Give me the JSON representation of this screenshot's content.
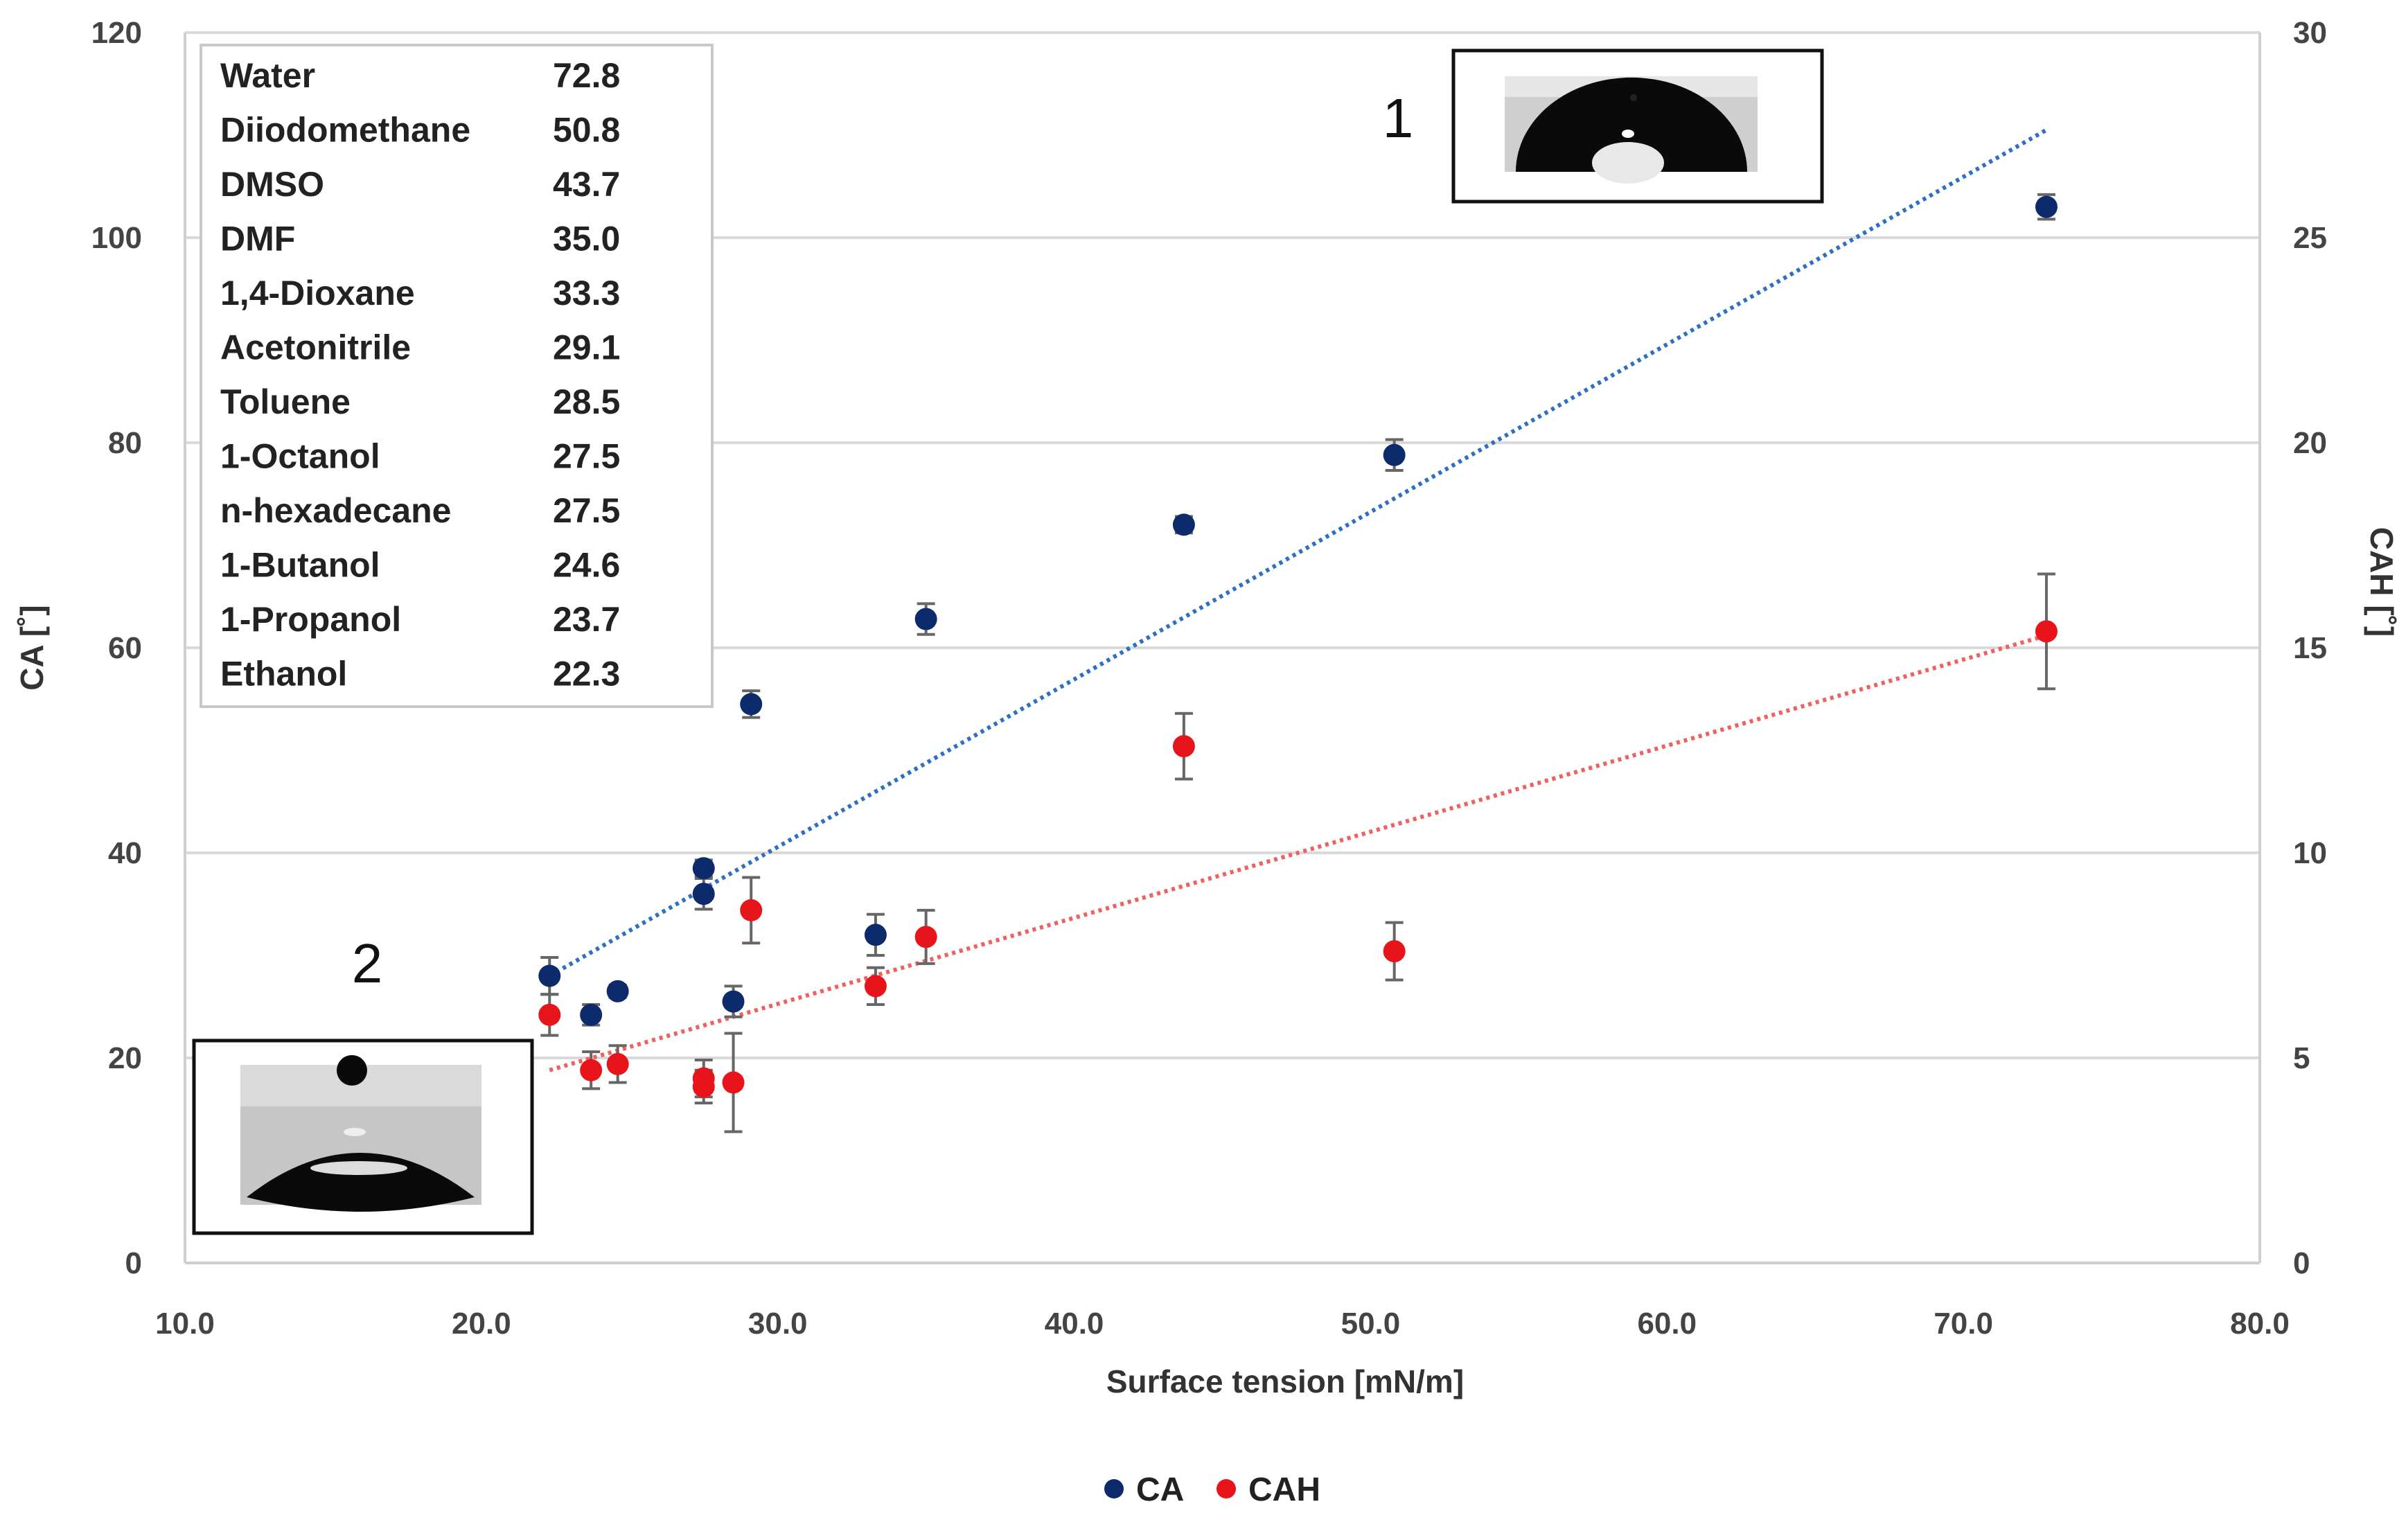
{
  "chart_data": {
    "type": "scatter",
    "xlabel": "Surface tension [mN/m]",
    "ylabel": "CA [˚]",
    "y2label": "CAH [˚]",
    "xlim": [
      10,
      80
    ],
    "ylim": [
      0,
      120
    ],
    "y2lim": [
      0,
      30
    ],
    "x_ticks": [
      "10.0",
      "20.0",
      "30.0",
      "40.0",
      "50.0",
      "60.0",
      "70.0",
      "80.0"
    ],
    "x_tick_values": [
      10,
      20,
      30,
      40,
      50,
      60,
      70,
      80
    ],
    "y_ticks": [
      "0",
      "20",
      "40",
      "60",
      "80",
      "100",
      "120"
    ],
    "y_tick_values": [
      0,
      20,
      40,
      60,
      80,
      100,
      120
    ],
    "y2_ticks": [
      "0",
      "5",
      "10",
      "15",
      "20",
      "25",
      "30"
    ],
    "y2_tick_values": [
      0,
      5,
      10,
      15,
      20,
      25,
      30
    ],
    "grid": true,
    "series": [
      {
        "name": "CA",
        "color": "#0d2a6b",
        "trend_color": "#2e6fc2",
        "axis": "left",
        "points": [
          {
            "x": 72.8,
            "y": 103.0,
            "err": 1.2
          },
          {
            "x": 50.8,
            "y": 78.8,
            "err": 1.5
          },
          {
            "x": 43.7,
            "y": 72.0,
            "err": 0.8
          },
          {
            "x": 35.0,
            "y": 62.8,
            "err": 1.5
          },
          {
            "x": 29.1,
            "y": 54.5,
            "err": 1.3
          },
          {
            "x": 27.5,
            "y": 38.5,
            "err": 0.8
          },
          {
            "x": 27.5,
            "y": 36.0,
            "err": 1.5
          },
          {
            "x": 33.3,
            "y": 32.0,
            "err": 2.0
          },
          {
            "x": 22.3,
            "y": 28.0,
            "err": 1.8
          },
          {
            "x": 28.5,
            "y": 25.5,
            "err": 1.5
          },
          {
            "x": 24.6,
            "y": 26.5,
            "err": 0.6
          },
          {
            "x": 23.7,
            "y": 24.2,
            "err": 1.0
          }
        ],
        "trendline": {
          "x": [
            22.3,
            72.8
          ],
          "y": [
            28.0,
            110.5
          ]
        }
      },
      {
        "name": "CAH",
        "color": "#e8141b",
        "trend_color": "#f06060",
        "axis": "right",
        "points": [
          {
            "x": 72.8,
            "y": 15.4,
            "err": 1.4
          },
          {
            "x": 43.7,
            "y": 12.6,
            "err": 0.8
          },
          {
            "x": 29.1,
            "y": 8.6,
            "err": 0.8
          },
          {
            "x": 35.0,
            "y": 7.95,
            "err": 0.65
          },
          {
            "x": 50.8,
            "y": 7.6,
            "err": 0.7
          },
          {
            "x": 33.3,
            "y": 6.75,
            "err": 0.45
          },
          {
            "x": 22.3,
            "y": 6.05,
            "err": 0.5
          },
          {
            "x": 24.6,
            "y": 4.85,
            "err": 0.45
          },
          {
            "x": 23.7,
            "y": 4.7,
            "err": 0.45
          },
          {
            "x": 27.5,
            "y": 4.5,
            "err": 0.45
          },
          {
            "x": 27.5,
            "y": 4.3,
            "err": 0.4
          },
          {
            "x": 28.5,
            "y": 4.4,
            "err": 1.2
          }
        ],
        "trendline": {
          "x": [
            22.3,
            72.8
          ],
          "y": [
            4.7,
            15.3
          ]
        }
      }
    ],
    "table": [
      {
        "name": "Water",
        "value": "72.8"
      },
      {
        "name": "Diiodomethane",
        "value": "50.8"
      },
      {
        "name": "DMSO",
        "value": "43.7"
      },
      {
        "name": "DMF",
        "value": "35.0"
      },
      {
        "name": "1,4-Dioxane",
        "value": "33.3"
      },
      {
        "name": "Acetonitrile",
        "value": "29.1"
      },
      {
        "name": "Toluene",
        "value": "28.5"
      },
      {
        "name": "1-Octanol",
        "value": "27.5"
      },
      {
        "name": "n-hexadecane",
        "value": "27.5"
      },
      {
        "name": "1-Butanol",
        "value": "24.6"
      },
      {
        "name": "1-Propanol",
        "value": "23.7"
      },
      {
        "name": "Ethanol",
        "value": "22.3"
      }
    ],
    "insets": [
      {
        "label": "1"
      },
      {
        "label": "2"
      }
    ],
    "legend": [
      {
        "name": "CA",
        "color": "#0d2a6b"
      },
      {
        "name": "CAH",
        "color": "#e8141b"
      }
    ],
    "legend_position": "bottom-center"
  }
}
